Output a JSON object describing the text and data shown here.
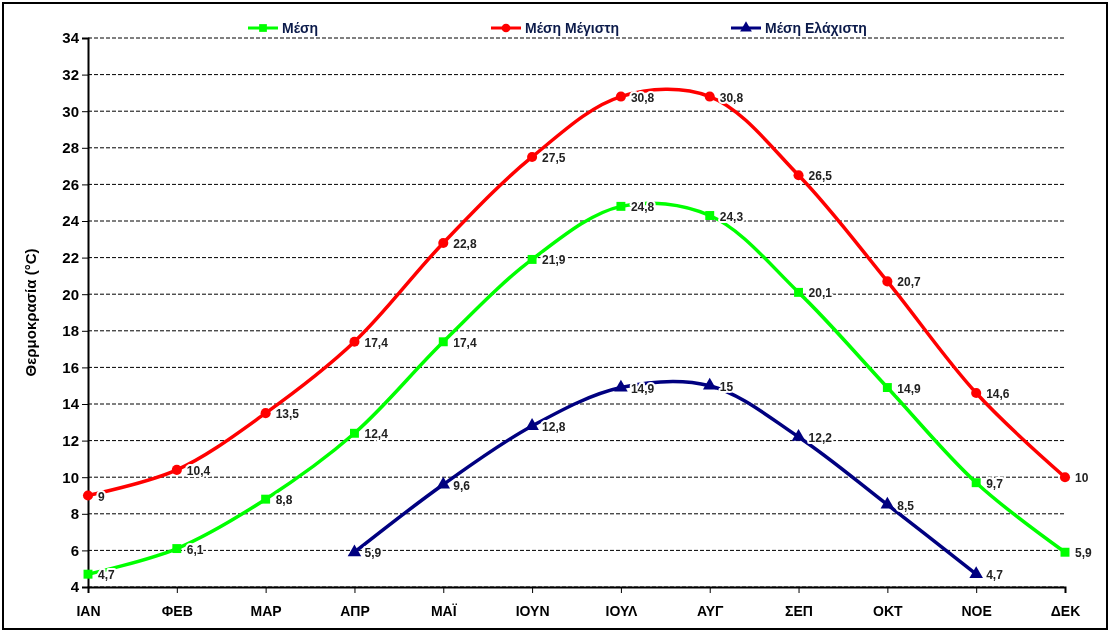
{
  "chart_data": {
    "type": "line",
    "ylabel": "Θερμοκρασία (°C)",
    "categories": [
      "ΙΑΝ",
      "ΦΕΒ",
      "ΜΑΡ",
      "ΑΠΡ",
      "ΜΑΪ",
      "ΙΟΥΝ",
      "ΙΟΥΛ",
      "ΑΥΓ",
      "ΣΕΠ",
      "ΟΚΤ",
      "ΝΟΕ",
      "ΔΕΚ"
    ],
    "series": [
      {
        "name": "Μέση",
        "color": "#00ff00",
        "marker": "square",
        "values": [
          4.7,
          6.1,
          8.8,
          12.4,
          17.4,
          21.9,
          24.8,
          24.3,
          20.1,
          14.9,
          9.7,
          5.9
        ],
        "value_labels": [
          "4,7",
          "6,1",
          "8,8",
          "12,4",
          "17,4",
          "21,9",
          "24,8",
          "24,3",
          "20,1",
          "14,9",
          "9,7",
          "5,9"
        ]
      },
      {
        "name": "Μέση Μέγιστη",
        "color": "#ff0000",
        "marker": "circle",
        "values": [
          9,
          10.4,
          13.5,
          17.4,
          22.8,
          27.5,
          30.8,
          30.8,
          26.5,
          20.7,
          14.6,
          10
        ],
        "value_labels": [
          "9",
          "10,4",
          "13,5",
          "17,4",
          "22,8",
          "27,5",
          "30,8",
          "30,8",
          "26,5",
          "20,7",
          "14,6",
          "10"
        ]
      },
      {
        "name": "Μέση Ελάχιστη",
        "color": "#000080",
        "marker": "triangle",
        "values": [
          null,
          null,
          null,
          5.9,
          9.6,
          12.8,
          14.9,
          15,
          12.2,
          8.5,
          4.7,
          null
        ],
        "value_labels": [
          null,
          null,
          null,
          "5,9",
          "9,6",
          "12,8",
          "14,9",
          "15",
          "12,2",
          "8,5",
          "4,7",
          null
        ]
      }
    ],
    "ylim": [
      4,
      34
    ],
    "yticks": [
      4,
      6,
      8,
      10,
      12,
      14,
      16,
      18,
      20,
      22,
      24,
      26,
      28,
      30,
      32,
      34
    ],
    "grid": "y",
    "legend": "top",
    "line_style": "solid"
  }
}
